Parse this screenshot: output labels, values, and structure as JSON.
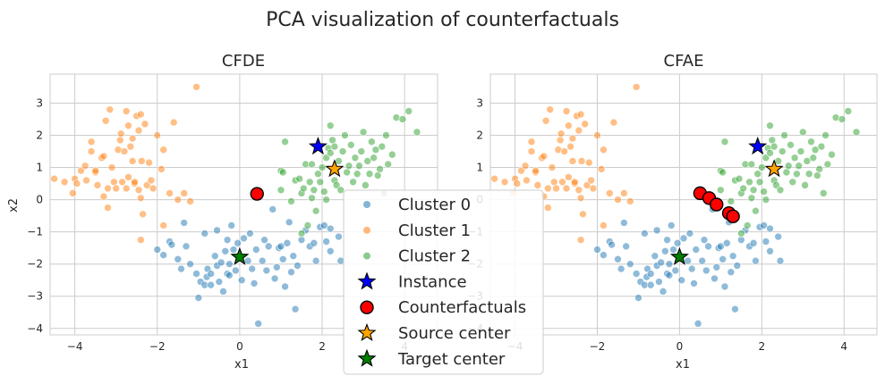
{
  "figure": {
    "title": "PCA visualization of counterfactuals",
    "colors": {
      "cluster0": "#1f77b4",
      "cluster1": "#ff7f0e",
      "cluster2": "#2ca02c",
      "instance": "#0000ff",
      "counterfactual": "#ff0000",
      "source_center": "#ffa500",
      "target_center": "#008000",
      "grid": "#cccccc"
    },
    "legend": {
      "placement": "center",
      "entries": [
        {
          "label": "Cluster 0",
          "marker": "dot",
          "color": "#1f77b4"
        },
        {
          "label": "Cluster 1",
          "marker": "dot",
          "color": "#ff7f0e"
        },
        {
          "label": "Cluster 2",
          "marker": "dot",
          "color": "#2ca02c"
        },
        {
          "label": "Instance",
          "marker": "star",
          "color": "#0000ff"
        },
        {
          "label": "Counterfactuals",
          "marker": "circle",
          "color": "#ff0000"
        },
        {
          "label": "Source center",
          "marker": "star",
          "color": "#ffa500"
        },
        {
          "label": "Target center",
          "marker": "star",
          "color": "#008000"
        }
      ]
    }
  },
  "chart_data": [
    {
      "type": "scatter",
      "title": "CFDE",
      "xlabel": "x1",
      "ylabel": "x2",
      "xlim": [
        -4.6,
        4.8
      ],
      "ylim": [
        -4.2,
        3.9
      ],
      "xticks": [
        -4,
        -2,
        0,
        2,
        4
      ],
      "yticks": [
        -4,
        -3,
        -2,
        -1,
        0,
        1,
        2,
        3
      ],
      "grid": true,
      "counterfactuals": [
        [
          0.42,
          0.18
        ]
      ]
    },
    {
      "type": "scatter",
      "title": "CFAE",
      "xlabel": "x1",
      "ylabel": "",
      "xlim": [
        -4.6,
        4.8
      ],
      "ylim": [
        -4.2,
        3.9
      ],
      "xticks": [
        -4,
        -2,
        0,
        2,
        4
      ],
      "yticks": [
        -4,
        -3,
        -2,
        -1,
        0,
        1,
        2,
        3
      ],
      "grid": true,
      "counterfactuals": [
        [
          0.5,
          0.2
        ],
        [
          0.72,
          0.05
        ],
        [
          0.9,
          -0.15
        ],
        [
          1.2,
          -0.42
        ],
        [
          1.3,
          -0.52
        ]
      ]
    }
  ],
  "shared_data": {
    "instance": [
      1.9,
      1.65
    ],
    "source_center": [
      2.3,
      0.95
    ],
    "target_center": [
      0.0,
      -1.78
    ],
    "cluster0": [
      [
        -2.0,
        -1.55
      ],
      [
        -1.85,
        -1.72
      ],
      [
        -1.7,
        -1.3
      ],
      [
        -1.65,
        -1.4
      ],
      [
        -1.5,
        -1.85
      ],
      [
        -1.42,
        -2.15
      ],
      [
        -1.35,
        -0.72
      ],
      [
        -1.3,
        -1.45
      ],
      [
        -1.2,
        -2.0
      ],
      [
        -1.05,
        -2.3
      ],
      [
        -1.0,
        -3.05
      ],
      [
        -0.95,
        -2.55
      ],
      [
        -0.85,
        -1.05
      ],
      [
        -0.85,
        -2.65
      ],
      [
        -0.8,
        -2.4
      ],
      [
        -0.78,
        -2.15
      ],
      [
        -0.7,
        -2.3
      ],
      [
        -0.7,
        -2.65
      ],
      [
        -0.6,
        -1.75
      ],
      [
        -0.55,
        -0.95
      ],
      [
        -0.55,
        -2.05
      ],
      [
        -0.5,
        -2.55
      ],
      [
        -0.45,
        -1.95
      ],
      [
        -0.4,
        -2.85
      ],
      [
        -0.35,
        -1.6
      ],
      [
        -0.3,
        -1.25
      ],
      [
        -0.3,
        -2.3
      ],
      [
        -0.25,
        -2.0
      ],
      [
        -0.2,
        -0.8
      ],
      [
        -0.15,
        -1.55
      ],
      [
        -0.1,
        -2.2
      ],
      [
        -0.05,
        -1.35
      ],
      [
        0.05,
        -2.5
      ],
      [
        0.1,
        -1.2
      ],
      [
        0.2,
        -1.9
      ],
      [
        0.25,
        -1.05
      ],
      [
        0.3,
        -2.15
      ],
      [
        0.35,
        -2.6
      ],
      [
        0.4,
        -1.55
      ],
      [
        0.45,
        -3.85
      ],
      [
        0.55,
        -1.9
      ],
      [
        0.65,
        -2.2
      ],
      [
        0.7,
        -1.45
      ],
      [
        0.8,
        -0.3
      ],
      [
        0.85,
        -2.45
      ],
      [
        0.9,
        -2.1
      ],
      [
        0.95,
        -1.5
      ],
      [
        1.0,
        -1.45
      ],
      [
        1.05,
        -1.85
      ],
      [
        1.1,
        -2.7
      ],
      [
        1.15,
        -1.35
      ],
      [
        1.2,
        -0.7
      ],
      [
        1.25,
        -2.25
      ],
      [
        1.3,
        -1.75
      ],
      [
        1.35,
        -3.4
      ],
      [
        1.4,
        -2.05
      ],
      [
        1.5,
        -1.25
      ],
      [
        1.6,
        -0.95
      ],
      [
        1.7,
        -1.45
      ],
      [
        1.8,
        -1.35
      ],
      [
        1.85,
        -1.9
      ],
      [
        1.95,
        -0.85
      ],
      [
        2.05,
        -0.8
      ],
      [
        2.1,
        -1.3
      ],
      [
        2.2,
        -0.9
      ],
      [
        2.4,
        -1.15
      ],
      [
        2.45,
        -1.9
      ],
      [
        2.2,
        -1.6
      ],
      [
        0.6,
        -1.25
      ],
      [
        -0.25,
        -2.35
      ]
    ],
    "cluster1": [
      [
        -4.5,
        0.65
      ],
      [
        -4.25,
        0.55
      ],
      [
        -4.05,
        0.2
      ],
      [
        -4.0,
        0.65
      ],
      [
        -3.85,
        0.9
      ],
      [
        -3.75,
        1.05
      ],
      [
        -3.72,
        0.6
      ],
      [
        -3.6,
        1.5
      ],
      [
        -3.6,
        1.8
      ],
      [
        -3.5,
        0.85
      ],
      [
        -3.45,
        0.45
      ],
      [
        -3.35,
        1.3
      ],
      [
        -3.3,
        0.1
      ],
      [
        -3.25,
        2.45
      ],
      [
        -3.2,
        0.35
      ],
      [
        -3.15,
        2.8
      ],
      [
        -3.1,
        1.0
      ],
      [
        -3.05,
        0.55
      ],
      [
        -3.0,
        0.35
      ],
      [
        -2.95,
        1.55
      ],
      [
        -2.9,
        1.85
      ],
      [
        -2.88,
        2.05
      ],
      [
        -2.85,
        0.55
      ],
      [
        -2.8,
        1.5
      ],
      [
        -2.75,
        0.35
      ],
      [
        -2.7,
        2.3
      ],
      [
        -2.7,
        0.7
      ],
      [
        -2.65,
        1.65
      ],
      [
        -2.6,
        1.9
      ],
      [
        -2.55,
        0.5
      ],
      [
        -2.5,
        2.6
      ],
      [
        -2.45,
        0.3
      ],
      [
        -2.45,
        2.15
      ],
      [
        -2.4,
        0.05
      ],
      [
        -2.4,
        2.65
      ],
      [
        -2.38,
        1.2
      ],
      [
        -2.35,
        -0.45
      ],
      [
        -2.3,
        2.35
      ],
      [
        -2.25,
        0.45
      ],
      [
        -2.2,
        1.15
      ],
      [
        -2.15,
        0.6
      ],
      [
        -2.1,
        0.35
      ],
      [
        -2.0,
        2.0
      ],
      [
        -1.9,
        0.95
      ],
      [
        -1.85,
        1.55
      ],
      [
        -1.85,
        -0.8
      ],
      [
        -1.7,
        0.2
      ],
      [
        -1.6,
        2.4
      ],
      [
        -1.5,
        0.0
      ],
      [
        -1.35,
        0.2
      ],
      [
        -1.2,
        -0.05
      ],
      [
        -1.05,
        3.5
      ],
      [
        -3.95,
        0.5
      ],
      [
        -2.75,
        2.75
      ],
      [
        -2.6,
        1.2
      ],
      [
        -3.3,
        1.35
      ],
      [
        -2.4,
        -1.25
      ],
      [
        -3.5,
        0.9
      ],
      [
        -2.55,
        0.55
      ],
      [
        -3.2,
        -0.25
      ]
    ],
    "cluster2": [
      [
        1.0,
        0.3
      ],
      [
        1.0,
        0.9
      ],
      [
        1.05,
        0.85
      ],
      [
        1.1,
        1.8
      ],
      [
        1.25,
        -0.05
      ],
      [
        1.35,
        0.6
      ],
      [
        1.45,
        0.65
      ],
      [
        1.5,
        0.2
      ],
      [
        1.55,
        0.35
      ],
      [
        1.6,
        1.1
      ],
      [
        1.65,
        -0.8
      ],
      [
        1.7,
        0.55
      ],
      [
        1.75,
        0.05
      ],
      [
        1.8,
        0.3
      ],
      [
        1.85,
        -0.35
      ],
      [
        1.9,
        0.8
      ],
      [
        1.95,
        0.55
      ],
      [
        2.0,
        1.0
      ],
      [
        2.05,
        0.25
      ],
      [
        2.1,
        1.3
      ],
      [
        2.15,
        1.6
      ],
      [
        2.2,
        2.3
      ],
      [
        2.25,
        1.85
      ],
      [
        2.3,
        0.6
      ],
      [
        2.35,
        0.45
      ],
      [
        2.4,
        1.2
      ],
      [
        2.45,
        0.3
      ],
      [
        2.5,
        1.5
      ],
      [
        2.55,
        2.0
      ],
      [
        2.6,
        0.85
      ],
      [
        2.65,
        1.05
      ],
      [
        2.7,
        1.7
      ],
      [
        2.75,
        0.55
      ],
      [
        2.8,
        1.3
      ],
      [
        2.85,
        0.8
      ],
      [
        2.9,
        1.05
      ],
      [
        2.95,
        1.5
      ],
      [
        3.0,
        2.1
      ],
      [
        3.05,
        0.45
      ],
      [
        3.1,
        1.2
      ],
      [
        3.15,
        0.8
      ],
      [
        3.2,
        1.8
      ],
      [
        3.25,
        1.3
      ],
      [
        3.3,
        1.55
      ],
      [
        3.4,
        0.95
      ],
      [
        3.45,
        1.65
      ],
      [
        3.5,
        0.2
      ],
      [
        3.55,
        2.0
      ],
      [
        3.6,
        1.1
      ],
      [
        3.7,
        1.4
      ],
      [
        3.8,
        2.55
      ],
      [
        3.95,
        2.5
      ],
      [
        4.1,
        2.75
      ],
      [
        4.3,
        2.1
      ],
      [
        1.75,
        1.1
      ],
      [
        2.1,
        0.0
      ],
      [
        1.5,
        -1.05
      ],
      [
        2.3,
        1.65
      ],
      [
        3.35,
        0.75
      ],
      [
        2.2,
        1.45
      ]
    ]
  }
}
